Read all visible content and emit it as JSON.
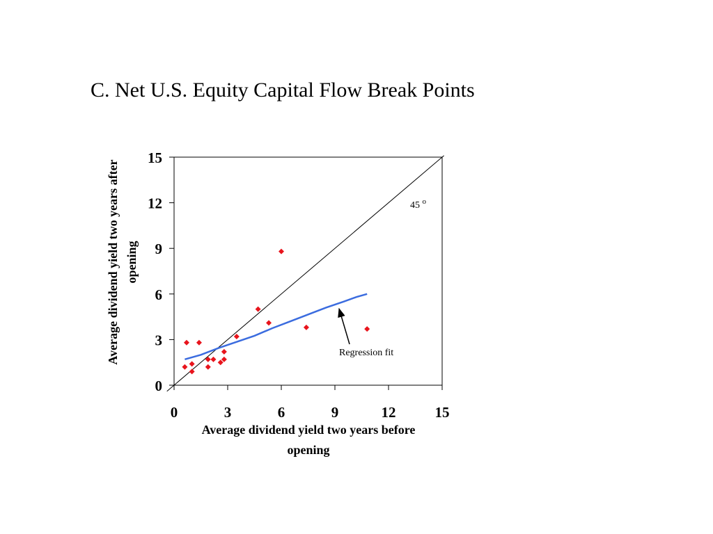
{
  "slide": {
    "title": "C. Net U.S. Equity Capital Flow Break Points"
  },
  "chart_data": {
    "type": "scatter",
    "xlabel_lines": [
      "Average dividend yield two years before",
      "opening"
    ],
    "ylabel_lines": [
      "Average dividend yield two years after",
      "opening"
    ],
    "xlim": [
      0,
      15
    ],
    "ylim": [
      0,
      15
    ],
    "x_ticks": [
      0,
      3,
      6,
      9,
      12,
      15
    ],
    "y_ticks": [
      0,
      3,
      6,
      9,
      12,
      15
    ],
    "grid": false,
    "legend": "none",
    "series": [
      {
        "type": "scatter",
        "color": "#e8141c",
        "marker": "diamond",
        "points": [
          [
            0.6,
            1.2
          ],
          [
            0.7,
            2.8
          ],
          [
            1.0,
            1.4
          ],
          [
            1.0,
            0.9
          ],
          [
            1.4,
            2.8
          ],
          [
            1.9,
            1.7
          ],
          [
            1.9,
            1.2
          ],
          [
            2.2,
            1.7
          ],
          [
            2.6,
            1.5
          ],
          [
            2.8,
            1.7
          ],
          [
            2.8,
            2.2
          ],
          [
            3.5,
            3.2
          ],
          [
            4.7,
            5.0
          ],
          [
            5.3,
            4.1
          ],
          [
            6.0,
            8.8
          ],
          [
            7.4,
            3.8
          ],
          [
            10.8,
            3.7
          ]
        ]
      },
      {
        "type": "line",
        "color": "#3b6cdf",
        "points": [
          [
            0.6,
            1.7
          ],
          [
            1.5,
            2.0
          ],
          [
            2.5,
            2.45
          ],
          [
            3.5,
            2.85
          ],
          [
            4.5,
            3.25
          ],
          [
            5.5,
            3.75
          ],
          [
            6.5,
            4.2
          ],
          [
            7.5,
            4.65
          ],
          [
            8.5,
            5.1
          ],
          [
            9.5,
            5.5
          ],
          [
            10.2,
            5.8
          ],
          [
            10.8,
            6.0
          ]
        ]
      },
      {
        "type": "reference-line",
        "color": "#000000",
        "points": [
          [
            -0.4,
            -0.4
          ],
          [
            15.1,
            15.1
          ]
        ]
      }
    ],
    "annotations": {
      "angle_label": "45",
      "angle_sup": "o",
      "regression_label": "Regression fit"
    }
  }
}
